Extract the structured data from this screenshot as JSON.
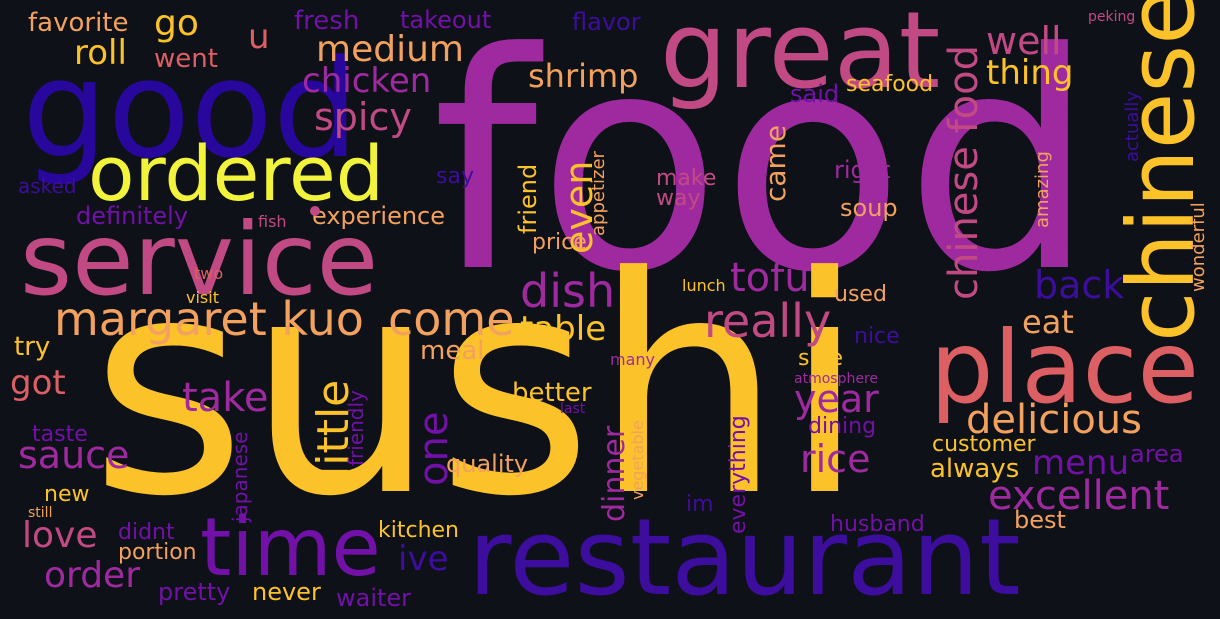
{
  "colors": {
    "background": "#0e1117",
    "yellow": "#fcc229",
    "bright_yellow": "#f1f43a",
    "orange": "#f2a15e",
    "salmon": "#dc5f64",
    "pink": "#c24a84",
    "magenta": "#9f2aa0",
    "purple": "#7211a8",
    "indigo": "#3d0d9e",
    "blue": "#27079c"
  },
  "words": [
    {
      "key": "food",
      "text": "food",
      "color": "#9f2aa0"
    },
    {
      "key": "sushi",
      "text": "sushi",
      "color": "#fcc229"
    },
    {
      "key": "good",
      "text": "good",
      "color": "#27079c"
    },
    {
      "key": "service",
      "text": "service",
      "color": "#c24a84"
    },
    {
      "key": "restaurant",
      "text": "restaurant",
      "color": "#3d0d9e"
    },
    {
      "key": "great",
      "text": "great",
      "color": "#c24a84"
    },
    {
      "key": "chinese",
      "text": "chinese",
      "color": "#fcc229"
    },
    {
      "key": "place",
      "text": "place",
      "color": "#dc5f64"
    },
    {
      "key": "time",
      "text": "time",
      "color": "#7211a8"
    },
    {
      "key": "ordered",
      "text": "ordered",
      "color": "#f1f43a"
    },
    {
      "key": "margaret_kuo",
      "text": "margaret kuo",
      "color": "#f2a15e"
    },
    {
      "key": "come",
      "text": "come",
      "color": "#f2a15e"
    },
    {
      "key": "chinese_food",
      "text": "chinese food",
      "color": "#c24a84"
    },
    {
      "key": "dish",
      "text": "dish",
      "color": "#9f2aa0"
    },
    {
      "key": "tofu",
      "text": "tofu",
      "color": "#9f2aa0"
    },
    {
      "key": "really",
      "text": "really",
      "color": "#c24a84"
    },
    {
      "key": "delicious",
      "text": "delicious",
      "color": "#f2a15e"
    },
    {
      "key": "excellent",
      "text": "excellent",
      "color": "#9f2aa0"
    },
    {
      "key": "little",
      "text": "little",
      "color": "#fcc229"
    },
    {
      "key": "one",
      "text": "one",
      "color": "#7211a8"
    },
    {
      "key": "take",
      "text": "take",
      "color": "#9f2aa0"
    },
    {
      "key": "sauce",
      "text": "sauce",
      "color": "#9f2aa0"
    },
    {
      "key": "menu",
      "text": "menu",
      "color": "#7211a8"
    },
    {
      "key": "rice",
      "text": "rice",
      "color": "#9f2aa0"
    },
    {
      "key": "year",
      "text": "year",
      "color": "#9f2aa0"
    },
    {
      "key": "back",
      "text": "back",
      "color": "#3d0d9e"
    },
    {
      "key": "well",
      "text": "well",
      "color": "#c24a84"
    },
    {
      "key": "medium",
      "text": "medium",
      "color": "#f2a15e"
    },
    {
      "key": "chicken",
      "text": "chicken",
      "color": "#9f2aa0"
    },
    {
      "key": "shrimp",
      "text": "shrimp",
      "color": "#f2a15e"
    },
    {
      "key": "spicy",
      "text": "spicy",
      "color": "#c24a84"
    },
    {
      "key": "roll",
      "text": "roll",
      "color": "#fcc229"
    },
    {
      "key": "go",
      "text": "go",
      "color": "#fcc229"
    },
    {
      "key": "u",
      "text": "u",
      "color": "#dc5f64"
    },
    {
      "key": "fresh",
      "text": "fresh",
      "color": "#7211a8"
    },
    {
      "key": "favorite",
      "text": "favorite",
      "color": "#f2a15e"
    },
    {
      "key": "went",
      "text": "went",
      "color": "#dc5f64"
    },
    {
      "key": "takeout",
      "text": "takeout",
      "color": "#7211a8"
    },
    {
      "key": "flavor",
      "text": "flavor",
      "color": "#3d0d9e"
    },
    {
      "key": "peking",
      "text": "peking",
      "color": "#c24a84"
    },
    {
      "key": "thing",
      "text": "thing",
      "color": "#fcc229"
    },
    {
      "key": "seafood",
      "text": "seafood",
      "color": "#fcc229"
    },
    {
      "key": "said",
      "text": "said",
      "color": "#7211a8"
    },
    {
      "key": "came",
      "text": "came",
      "color": "#f2a15e"
    },
    {
      "key": "even",
      "text": "even",
      "color": "#fcc229"
    },
    {
      "key": "friend",
      "text": "friend",
      "color": "#fcc229"
    },
    {
      "key": "appetizer",
      "text": "appetizer",
      "color": "#f2a15e"
    },
    {
      "key": "make",
      "text": "make",
      "color": "#c24a84"
    },
    {
      "key": "way",
      "text": "way",
      "color": "#c24a84"
    },
    {
      "key": "right",
      "text": "right",
      "color": "#9f2aa0"
    },
    {
      "key": "soup",
      "text": "soup",
      "color": "#f2a15e"
    },
    {
      "key": "amazing",
      "text": "amazing",
      "color": "#f2a15e"
    },
    {
      "key": "actually",
      "text": "actually",
      "color": "#3d0d9e"
    },
    {
      "key": "wonderful",
      "text": "wonderful",
      "color": "#f2a15e"
    },
    {
      "key": "eat",
      "text": "eat",
      "color": "#f2a15e"
    },
    {
      "key": "nice",
      "text": "nice",
      "color": "#3d0d9e"
    },
    {
      "key": "table",
      "text": "table",
      "color": "#fcc229"
    },
    {
      "key": "price",
      "text": "price",
      "color": "#f2a15e"
    },
    {
      "key": "say",
      "text": "say",
      "color": "#3d0d9e"
    },
    {
      "key": "experience",
      "text": "experience",
      "color": "#f2a15e"
    },
    {
      "key": "definitely",
      "text": "definitely",
      "color": "#7211a8"
    },
    {
      "key": "asked",
      "text": "asked",
      "color": "#3d0d9e"
    },
    {
      "key": "fish",
      "text": "fish",
      "color": "#c24a84"
    },
    {
      "key": "two",
      "text": "two",
      "color": "#dc5f64"
    },
    {
      "key": "visit",
      "text": "visit",
      "color": "#fcc229"
    },
    {
      "key": "lunch",
      "text": "lunch",
      "color": "#fcc229"
    },
    {
      "key": "used",
      "text": "used",
      "color": "#f2a15e"
    },
    {
      "key": "side",
      "text": "side",
      "color": "#fcc229"
    },
    {
      "key": "atmosphere",
      "text": "atmosphere",
      "color": "#9f2aa0"
    },
    {
      "key": "many",
      "text": "many",
      "color": "#9f2aa0"
    },
    {
      "key": "meal",
      "text": "meal",
      "color": "#f2a15e"
    },
    {
      "key": "try",
      "text": "try",
      "color": "#fcc229"
    },
    {
      "key": "got",
      "text": "got",
      "color": "#dc5f64"
    },
    {
      "key": "friendly",
      "text": "friendly",
      "color": "#7211a8"
    },
    {
      "key": "japanese",
      "text": "japanese",
      "color": "#7211a8"
    },
    {
      "key": "better",
      "text": "better",
      "color": "#fcc229"
    },
    {
      "key": "last",
      "text": "last",
      "color": "#7211a8"
    },
    {
      "key": "dinner",
      "text": "dinner",
      "color": "#9f2aa0"
    },
    {
      "key": "vegetable",
      "text": "vegetable",
      "color": "#f2a15e"
    },
    {
      "key": "everything",
      "text": "everything",
      "color": "#7211a8"
    },
    {
      "key": "dining",
      "text": "dining",
      "color": "#7211a8"
    },
    {
      "key": "always",
      "text": "always",
      "color": "#fcc229"
    },
    {
      "key": "customer",
      "text": "customer",
      "color": "#fcc229"
    },
    {
      "key": "area",
      "text": "area",
      "color": "#7211a8"
    },
    {
      "key": "quality",
      "text": "quality",
      "color": "#f2a15e"
    },
    {
      "key": "taste",
      "text": "taste",
      "color": "#7211a8"
    },
    {
      "key": "new",
      "text": "new",
      "color": "#fcc229"
    },
    {
      "key": "still",
      "text": "still",
      "color": "#f2a15e"
    },
    {
      "key": "love",
      "text": "love",
      "color": "#c24a84"
    },
    {
      "key": "didnt",
      "text": "didnt",
      "color": "#7211a8"
    },
    {
      "key": "portion",
      "text": "portion",
      "color": "#f2a15e"
    },
    {
      "key": "order",
      "text": "order",
      "color": "#9f2aa0"
    },
    {
      "key": "pretty",
      "text": "pretty",
      "color": "#7211a8"
    },
    {
      "key": "never",
      "text": "never",
      "color": "#fcc229"
    },
    {
      "key": "waiter",
      "text": "waiter",
      "color": "#7211a8"
    },
    {
      "key": "kitchen",
      "text": "kitchen",
      "color": "#fcc229"
    },
    {
      "key": "ive",
      "text": "ive",
      "color": "#3d0d9e"
    },
    {
      "key": "im",
      "text": "im",
      "color": "#3d0d9e"
    },
    {
      "key": "husband",
      "text": "husband",
      "color": "#7211a8"
    },
    {
      "key": "best",
      "text": "best",
      "color": "#f2a15e"
    }
  ]
}
